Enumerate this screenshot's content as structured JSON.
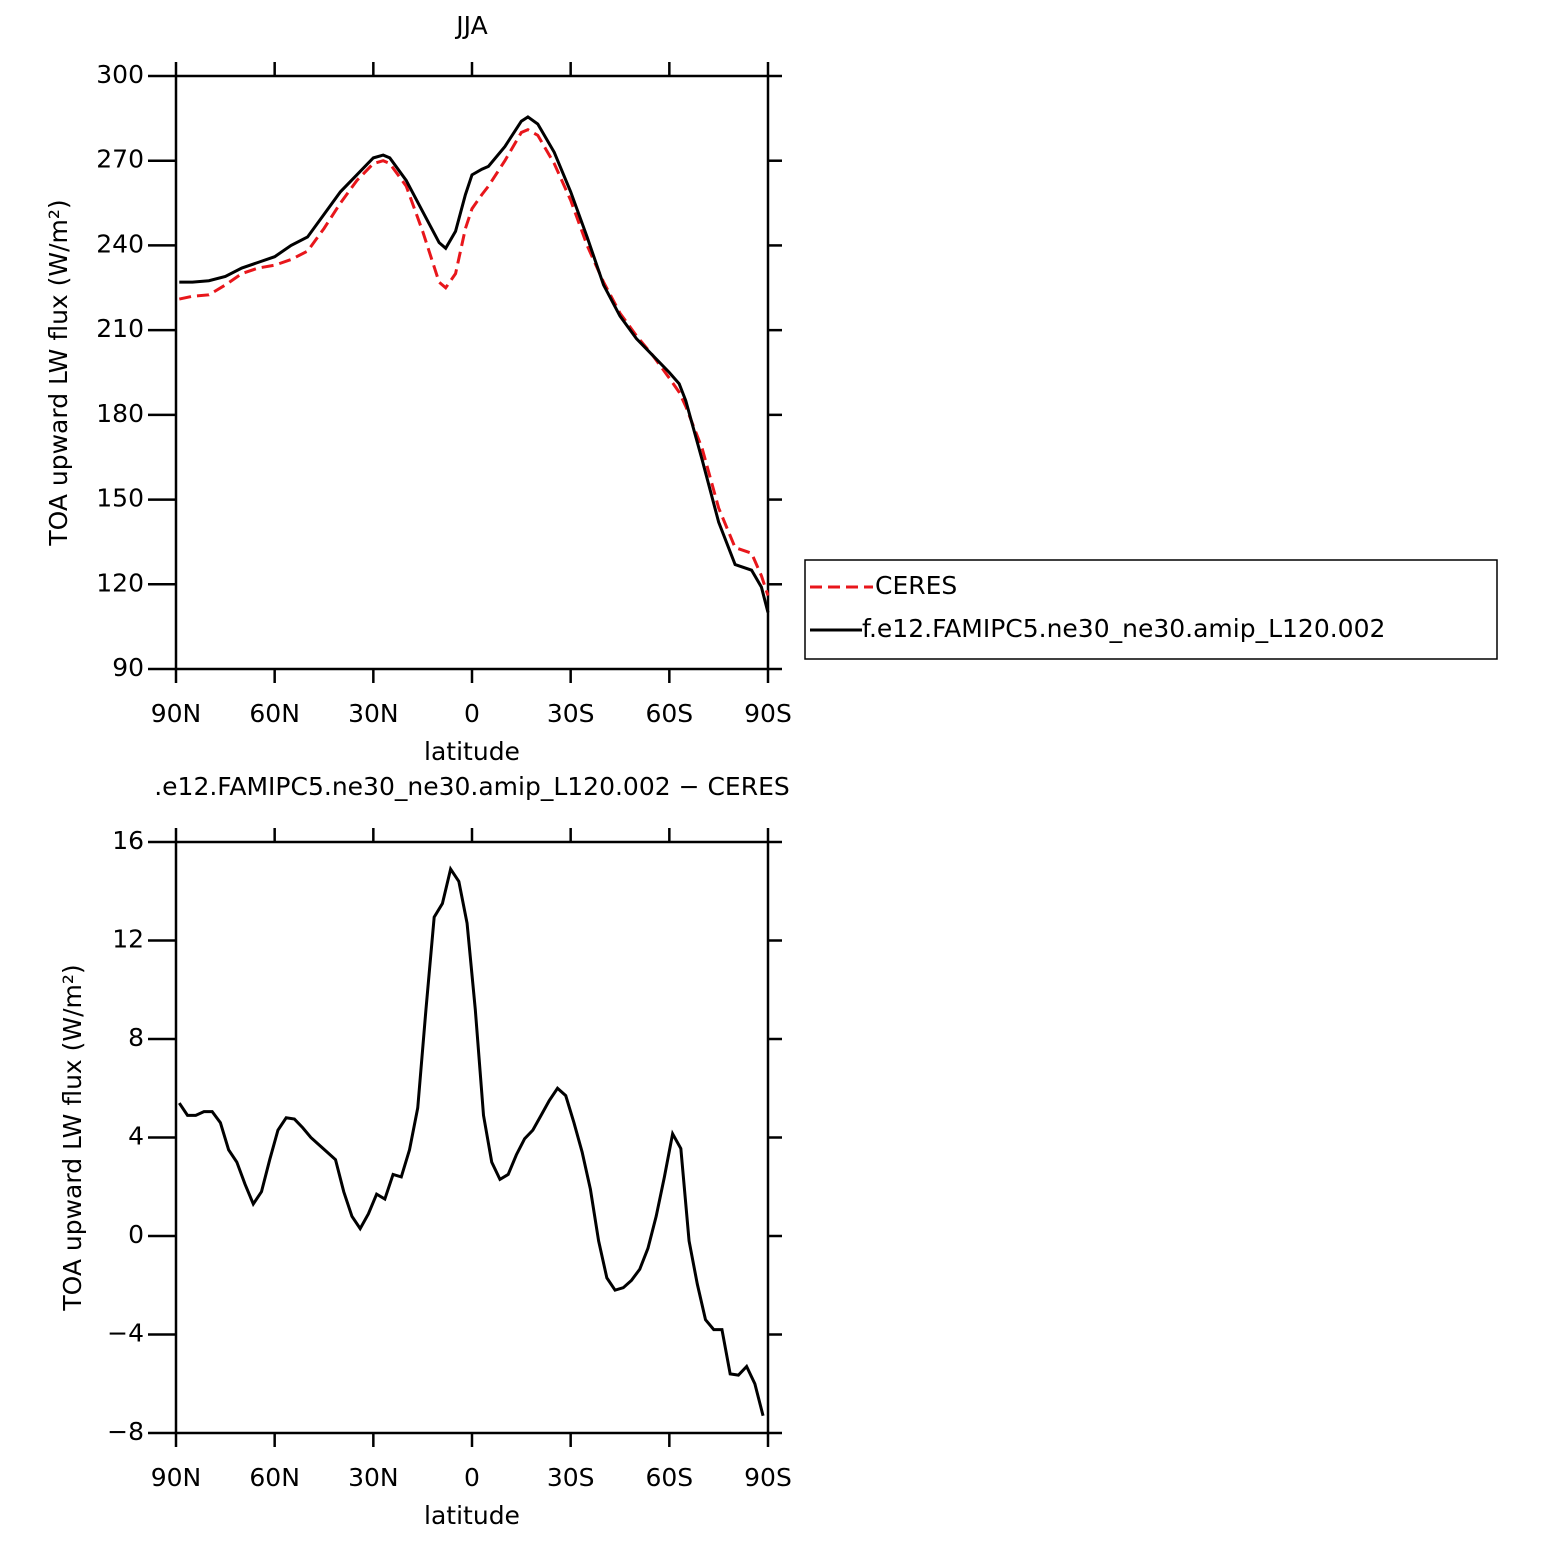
{
  "chart_data": [
    {
      "type": "line",
      "title": "JJA",
      "xlabel": "latitude",
      "ylabel": "TOA upward LW flux (W/m²)",
      "x": [
        89,
        85,
        80,
        75,
        70,
        65,
        60,
        55,
        50,
        45,
        40,
        35,
        30,
        27,
        25,
        20,
        15,
        10,
        8,
        5,
        2,
        0,
        -3,
        -5,
        -10,
        -15,
        -17,
        -20,
        -25,
        -30,
        -35,
        -40,
        -45,
        -50,
        -55,
        -60,
        -63,
        -65,
        -70,
        -75,
        -80,
        -85,
        -88,
        -90
      ],
      "series": [
        {
          "name": "CERES",
          "color": "#e8161b",
          "dash": "dashed",
          "values": [
            221,
            222,
            222.5,
            226,
            230,
            232,
            233,
            235,
            238,
            246,
            255,
            263,
            269,
            270,
            269,
            261,
            245,
            227,
            225,
            230,
            246,
            253,
            258,
            261,
            270,
            280,
            281,
            279,
            269,
            256,
            240,
            227,
            216,
            208,
            201,
            193,
            188,
            183,
            168,
            147,
            133,
            131,
            123,
            116
          ]
        },
        {
          "name": "f.e12.FAMIPC5.ne30_ne30.amip_L120.002",
          "color": "#000000",
          "dash": "solid",
          "values": [
            227,
            227,
            227.5,
            229,
            232,
            234,
            236,
            240,
            243,
            251,
            259,
            265,
            271,
            272,
            271,
            263,
            252,
            241,
            239,
            245,
            258,
            265,
            267,
            268,
            275,
            284,
            285.5,
            283,
            273,
            259,
            243,
            226,
            215,
            207,
            201,
            195,
            191,
            185,
            164,
            142,
            127,
            125,
            119,
            110
          ]
        }
      ],
      "xlim": [
        90,
        -90
      ],
      "xticks": [
        {
          "value": 90,
          "label": "90N"
        },
        {
          "value": 60,
          "label": "60N"
        },
        {
          "value": 30,
          "label": "30N"
        },
        0,
        {
          "value": -30,
          "label": "30S"
        },
        {
          "value": -60,
          "label": "60S"
        },
        {
          "value": -90,
          "label": "90S"
        }
      ],
      "ylim": [
        90,
        300
      ],
      "yticks": [
        90,
        120,
        150,
        180,
        210,
        240,
        270,
        300
      ],
      "legend": "right"
    },
    {
      "type": "line",
      "title": ".e12.FAMIPC5.ne30_ne30.amip_L120.002 − CERES",
      "xlabel": "latitude",
      "ylabel": "TOA upward LW flux (W/m²)",
      "x": [
        89,
        86.5,
        84,
        81.5,
        79,
        76.5,
        74,
        71.5,
        69,
        66.5,
        64,
        61.5,
        59,
        56.5,
        54,
        51.5,
        49,
        46.5,
        44,
        41.5,
        39,
        36.5,
        34,
        31.5,
        29,
        26.5,
        24,
        21.5,
        19,
        16.5,
        14,
        11.5,
        9,
        6.5,
        4,
        1.5,
        -1,
        -3.5,
        -6,
        -8.5,
        -11,
        -13.5,
        -16,
        -18.5,
        -21,
        -23.5,
        -26,
        -28.5,
        -31,
        -33.5,
        -36,
        -38.5,
        -41,
        -43.5,
        -46,
        -48.5,
        -51,
        -53.5,
        -56,
        -58.5,
        -61,
        -63.5,
        -66,
        -68.5,
        -71,
        -73.5,
        -76,
        -78.5,
        -81,
        -83.5,
        -86,
        -88.5
      ],
      "series": [
        {
          "color": "#000000",
          "dash": "solid",
          "values": [
            5.4,
            4.9,
            4.9,
            5.05,
            5.05,
            4.6,
            3.5,
            3.0,
            2.1,
            1.3,
            1.8,
            3.1,
            4.3,
            4.8,
            4.75,
            4.4,
            4.0,
            3.7,
            3.4,
            3.1,
            1.8,
            0.8,
            0.3,
            0.9,
            1.7,
            1.5,
            2.5,
            2.4,
            3.5,
            5.2,
            9.2,
            12.95,
            13.5,
            14.9,
            14.4,
            12.7,
            9.2,
            4.9,
            3.0,
            2.3,
            2.5,
            3.3,
            3.95,
            4.3,
            4.9,
            5.5,
            6.0,
            5.7,
            4.6,
            3.4,
            1.9,
            -0.2,
            -1.7,
            -2.2,
            -2.1,
            -1.8,
            -1.35,
            -0.5,
            0.8,
            2.4,
            4.15,
            3.55,
            -0.2,
            -1.95,
            -3.4,
            -3.8,
            -3.8,
            -5.6,
            -5.65,
            -5.3,
            -6.0,
            -7.3
          ]
        }
      ],
      "xlim": [
        90,
        -90
      ],
      "xticks": [
        {
          "value": 90,
          "label": "90N"
        },
        {
          "value": 60,
          "label": "60N"
        },
        {
          "value": 30,
          "label": "30N"
        },
        0,
        {
          "value": -30,
          "label": "30S"
        },
        {
          "value": -60,
          "label": "60S"
        },
        {
          "value": -90,
          "label": "90S"
        }
      ],
      "ylim": [
        -8,
        16
      ],
      "yticks": [
        {
          "value": -8,
          "label": "−8"
        },
        {
          "value": -4,
          "label": "−4"
        },
        0,
        4,
        8,
        12,
        16
      ]
    }
  ]
}
